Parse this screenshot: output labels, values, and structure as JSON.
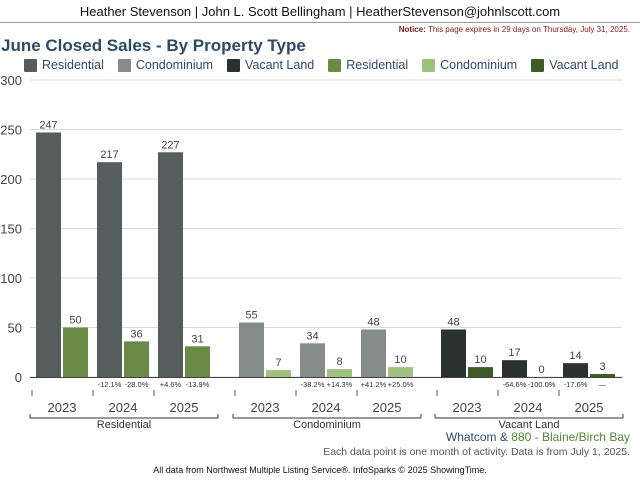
{
  "header": {
    "agents": "Heather Stevenson | John L. Scott Bellingham | HeatherStevenson@johnlscott.com"
  },
  "notice": {
    "label": "Notice:",
    "text": "This page expires in 29 days on Thursday, July 31, 2025."
  },
  "colors": {
    "dark_residential": "#555e5c",
    "dark_condominium": "#848c8a",
    "dark_vacant_land": "#2a3230",
    "green_residential": "#6a8b45",
    "green_condominium": "#9dc27c",
    "green_vacant_land": "#3e5b26"
  },
  "legend": [
    {
      "label": "Residential",
      "color": "#555e5c"
    },
    {
      "label": "Condominium",
      "color": "#848c8a"
    },
    {
      "label": "Vacant Land",
      "color": "#2a3230"
    },
    {
      "label": "Residential",
      "color": "#6a8b45"
    },
    {
      "label": "Condominium",
      "color": "#9dc27c"
    },
    {
      "label": "Vacant Land",
      "color": "#3e5b26"
    }
  ],
  "chart_data": {
    "type": "bar",
    "title": "June Closed Sales - By Property Type",
    "ylim": [
      0,
      300
    ],
    "yticks": [
      0,
      50,
      100,
      150,
      200,
      250,
      300
    ],
    "grid": true,
    "legend_position": "top",
    "groups": [
      {
        "name": "Residential",
        "years": [
          {
            "year": "2023",
            "values": [
              247,
              50
            ],
            "changes": [
              "",
              ""
            ]
          },
          {
            "year": "2024",
            "values": [
              217,
              36
            ],
            "changes": [
              "-12.1%",
              "-28.0%"
            ]
          },
          {
            "year": "2025",
            "values": [
              227,
              31
            ],
            "changes": [
              "+4.6%",
              "-13.9%"
            ]
          }
        ],
        "colors": [
          "#555e5c",
          "#6a8b45"
        ]
      },
      {
        "name": "Condominium",
        "years": [
          {
            "year": "2023",
            "values": [
              55,
              7
            ],
            "changes": [
              "",
              ""
            ]
          },
          {
            "year": "2024",
            "values": [
              34,
              8
            ],
            "changes": [
              "-38.2%",
              "+14.3%"
            ]
          },
          {
            "year": "2025",
            "values": [
              48,
              10
            ],
            "changes": [
              "+41.2%",
              "+25.0%"
            ]
          }
        ],
        "colors": [
          "#848c8a",
          "#9dc27c"
        ]
      },
      {
        "name": "Vacant Land",
        "years": [
          {
            "year": "2023",
            "values": [
              48,
              10
            ],
            "changes": [
              "",
              ""
            ]
          },
          {
            "year": "2024",
            "values": [
              17,
              0
            ],
            "changes": [
              "-64.6%",
              "-100.0%"
            ]
          },
          {
            "year": "2025",
            "values": [
              14,
              3
            ],
            "changes": [
              "-17.6%",
              "—"
            ]
          }
        ],
        "colors": [
          "#2a3230",
          "#3e5b26"
        ]
      }
    ]
  },
  "region": {
    "area_a": "Whatcom",
    "amp": "&",
    "area_b": "880 - Blaine/Birch Bay"
  },
  "data_note": "Each data point is one month of activity. Data is from July 1, 2025.",
  "footer": "All data from Northwest Multiple Listing Service®. InfoSparks © 2025 ShowingTime."
}
